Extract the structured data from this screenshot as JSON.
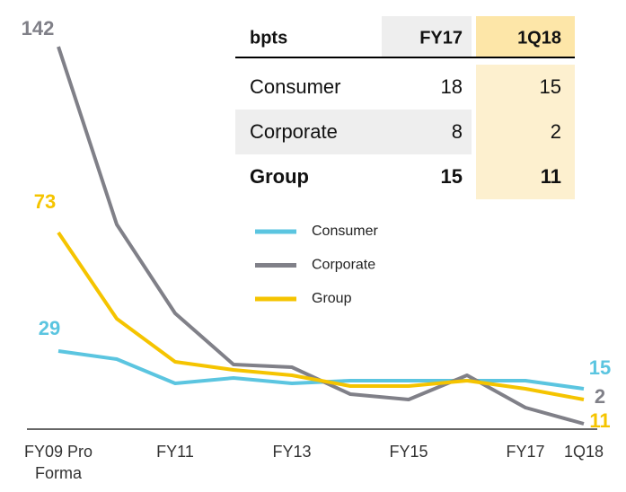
{
  "chart_data": {
    "type": "line",
    "categories": [
      "FY09 Pro Forma",
      null,
      "FY11",
      null,
      "FY13",
      null,
      "FY15",
      null,
      "FY17",
      "1Q18"
    ],
    "series": [
      {
        "name": "Consumer",
        "color": "#5bc5e0",
        "values": [
          29,
          26,
          17,
          19,
          17,
          18,
          18,
          18,
          18,
          15
        ]
      },
      {
        "name": "Corporate",
        "color": "#808088",
        "values": [
          142,
          76,
          43,
          24,
          23,
          13,
          11,
          20,
          8,
          2
        ]
      },
      {
        "name": "Group",
        "color": "#f5c400",
        "values": [
          73,
          41,
          25,
          22,
          20,
          16,
          16,
          18,
          15,
          11
        ]
      }
    ],
    "ylim": [
      0,
      145
    ],
    "table": {
      "header": [
        "bpts",
        "FY17",
        "1Q18"
      ],
      "rows": [
        [
          "Consumer",
          "18",
          "15"
        ],
        [
          "Corporate",
          "8",
          "2"
        ],
        [
          "Group",
          "15",
          "11"
        ]
      ]
    }
  }
}
